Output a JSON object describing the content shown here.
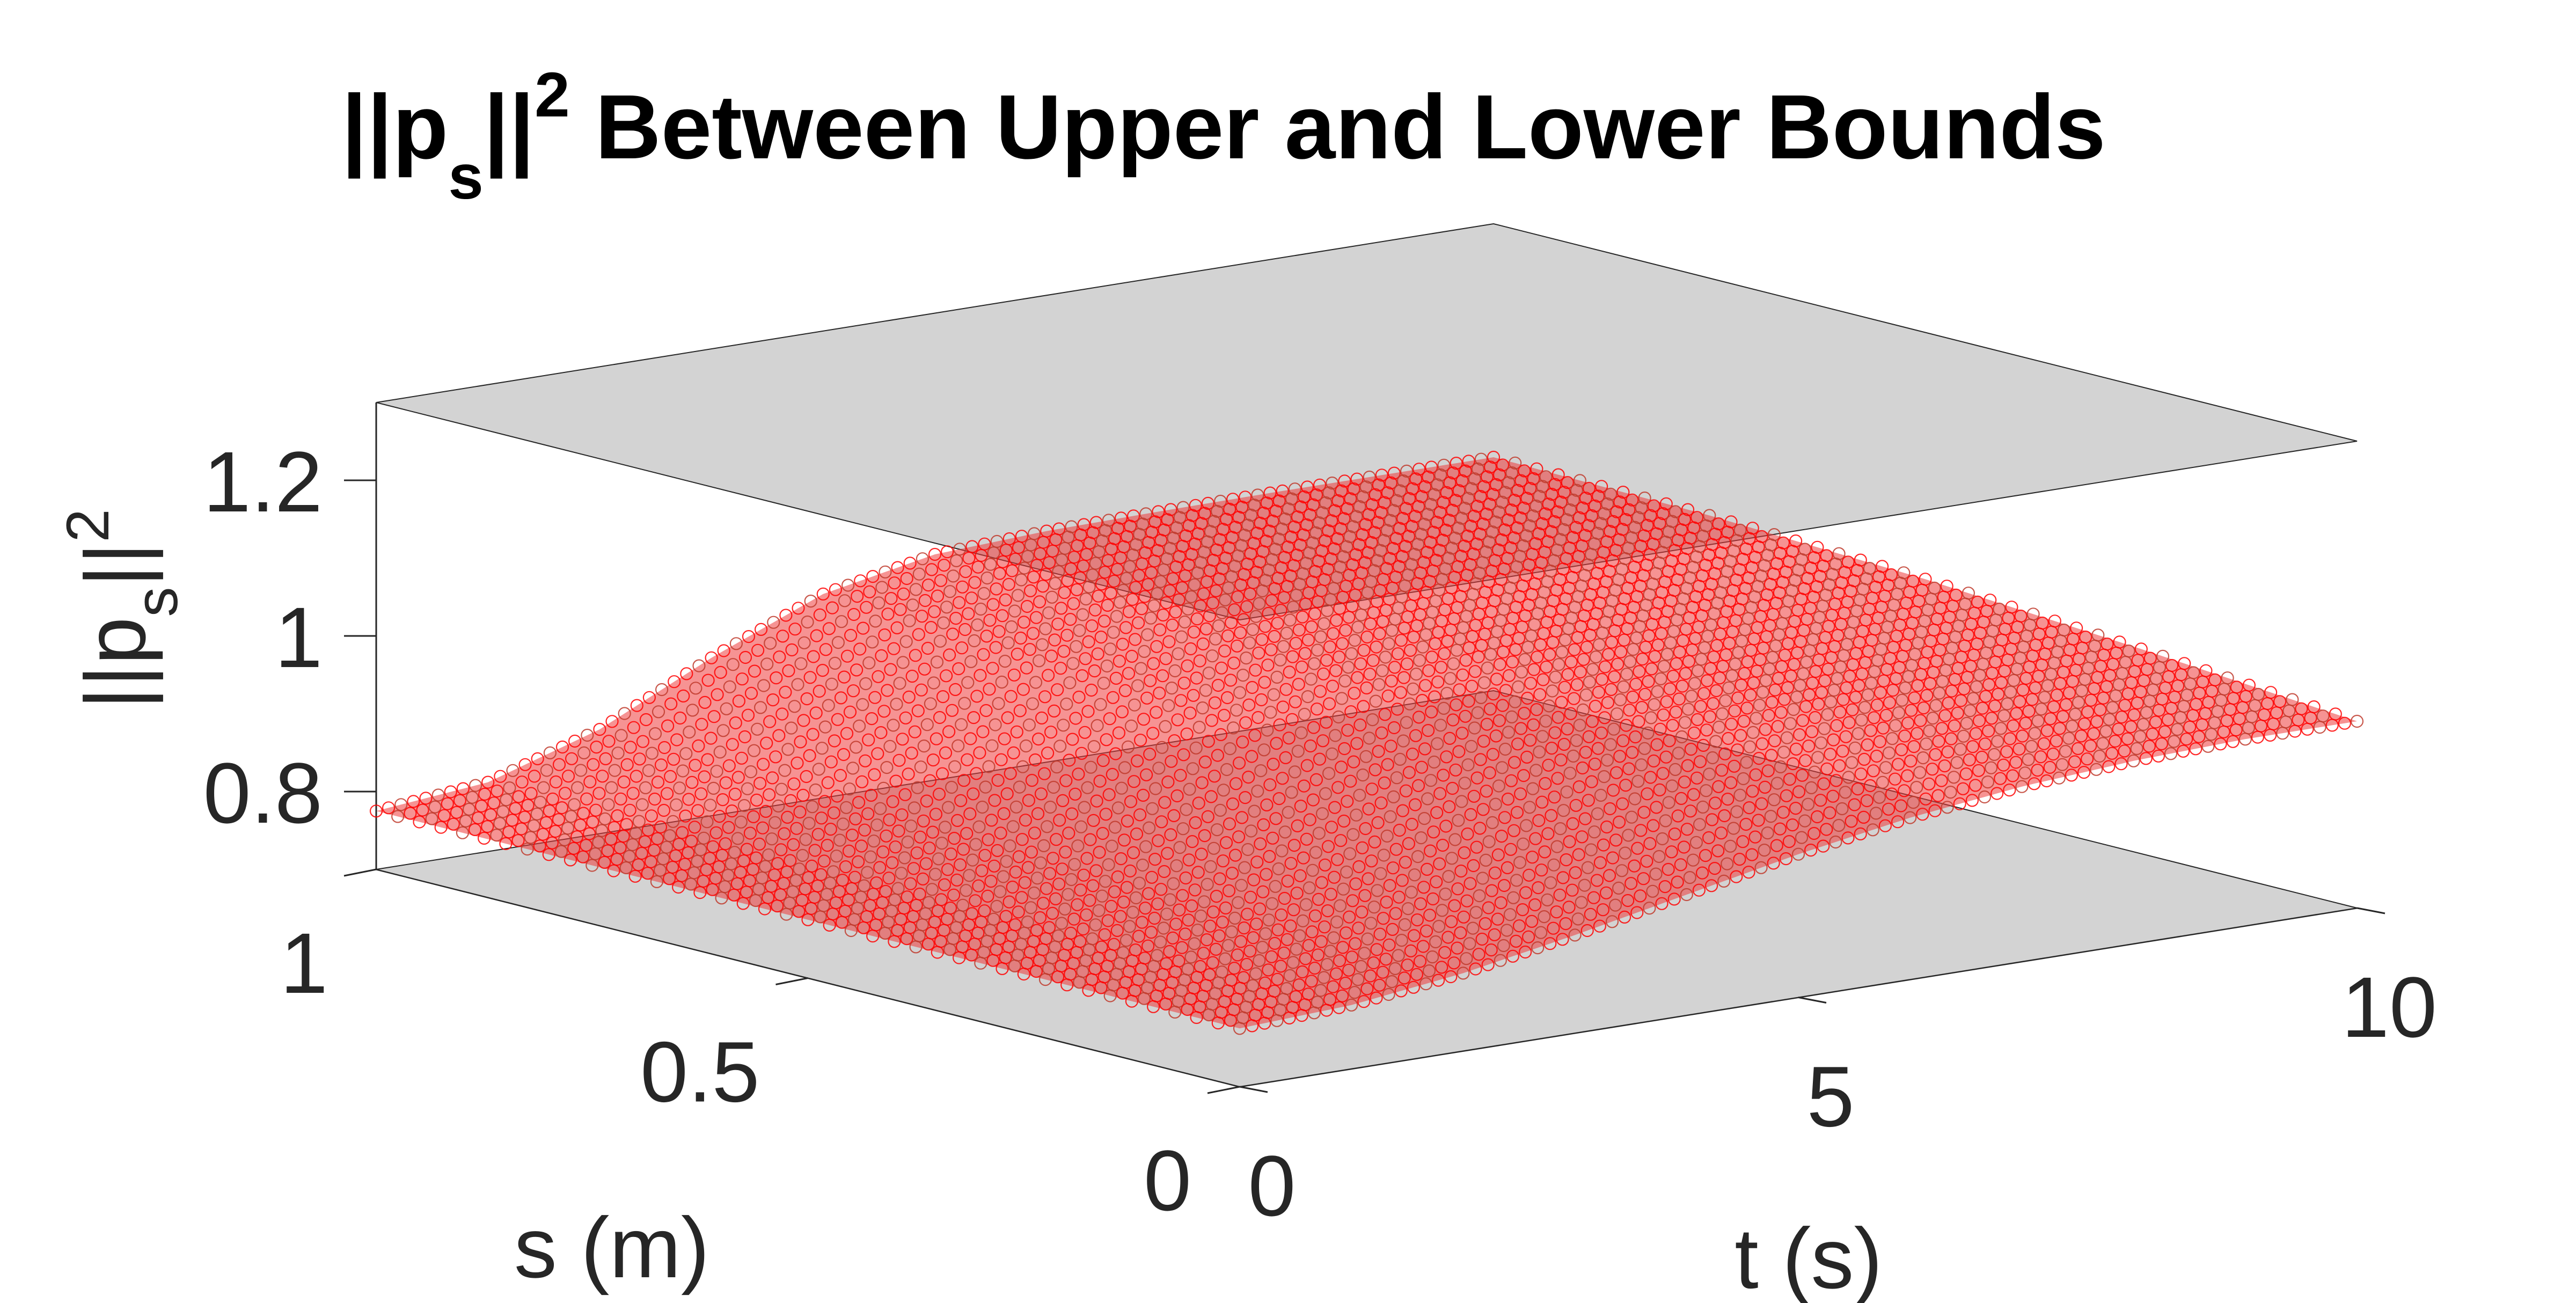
{
  "chart_data": {
    "type": "surface",
    "title": {
      "prefix": "||p",
      "sub": "s",
      "mid": "||",
      "sup": "2",
      "rest": " Between Upper and Lower Bounds"
    },
    "xlabel": "t (s)",
    "ylabel": "s (m)",
    "zlabel": {
      "prefix": "||p",
      "sub": "s",
      "mid": "||",
      "sup": "2"
    },
    "xlim": [
      0,
      10
    ],
    "ylim": [
      0,
      1
    ],
    "zlim": [
      0.7,
      1.3
    ],
    "xticks": [
      0,
      5,
      10
    ],
    "xtick_labels": [
      "0",
      "5",
      "10"
    ],
    "yticks": [
      0,
      0.5,
      1
    ],
    "ytick_labels": [
      "0",
      "0.5",
      "1"
    ],
    "zticks": [
      0.8,
      1,
      1.2
    ],
    "ztick_labels": [
      "0.8",
      "1",
      "1.2"
    ],
    "upper_bound": 1.3,
    "lower_bound": 0.7,
    "grid": false,
    "series": [
      {
        "values": "upper bound plane z = 1.3",
        "color": "#d3d3d3"
      },
      {
        "values": "lower bound plane z = 0.7",
        "color": "#d3d3d3"
      },
      {
        "marker": "o",
        "color": "#ff0000",
        "edge_color": "#c0392b",
        "t": [
          0,
          1,
          2,
          3,
          4,
          5,
          6,
          7,
          8,
          9,
          10
        ],
        "s": [
          0,
          0.25,
          0.5,
          0.75,
          1
        ],
        "z": [
          [
            0.775,
            0.782,
            0.8,
            0.826,
            0.855,
            0.884,
            0.908,
            0.925,
            0.935,
            0.94,
            0.94
          ],
          [
            0.775,
            0.783,
            0.806,
            0.844,
            0.888,
            0.925,
            0.947,
            0.958,
            0.962,
            0.963,
            0.963
          ],
          [
            0.775,
            0.785,
            0.816,
            0.866,
            0.92,
            0.958,
            0.975,
            0.98,
            0.982,
            0.983,
            0.983
          ],
          [
            0.775,
            0.787,
            0.826,
            0.887,
            0.946,
            0.978,
            0.99,
            0.993,
            0.994,
            0.995,
            0.995
          ],
          [
            0.775,
            0.789,
            0.834,
            0.903,
            0.962,
            0.99,
            0.997,
            0.999,
            1.0,
            1.0,
            1.0
          ]
        ]
      }
    ]
  }
}
